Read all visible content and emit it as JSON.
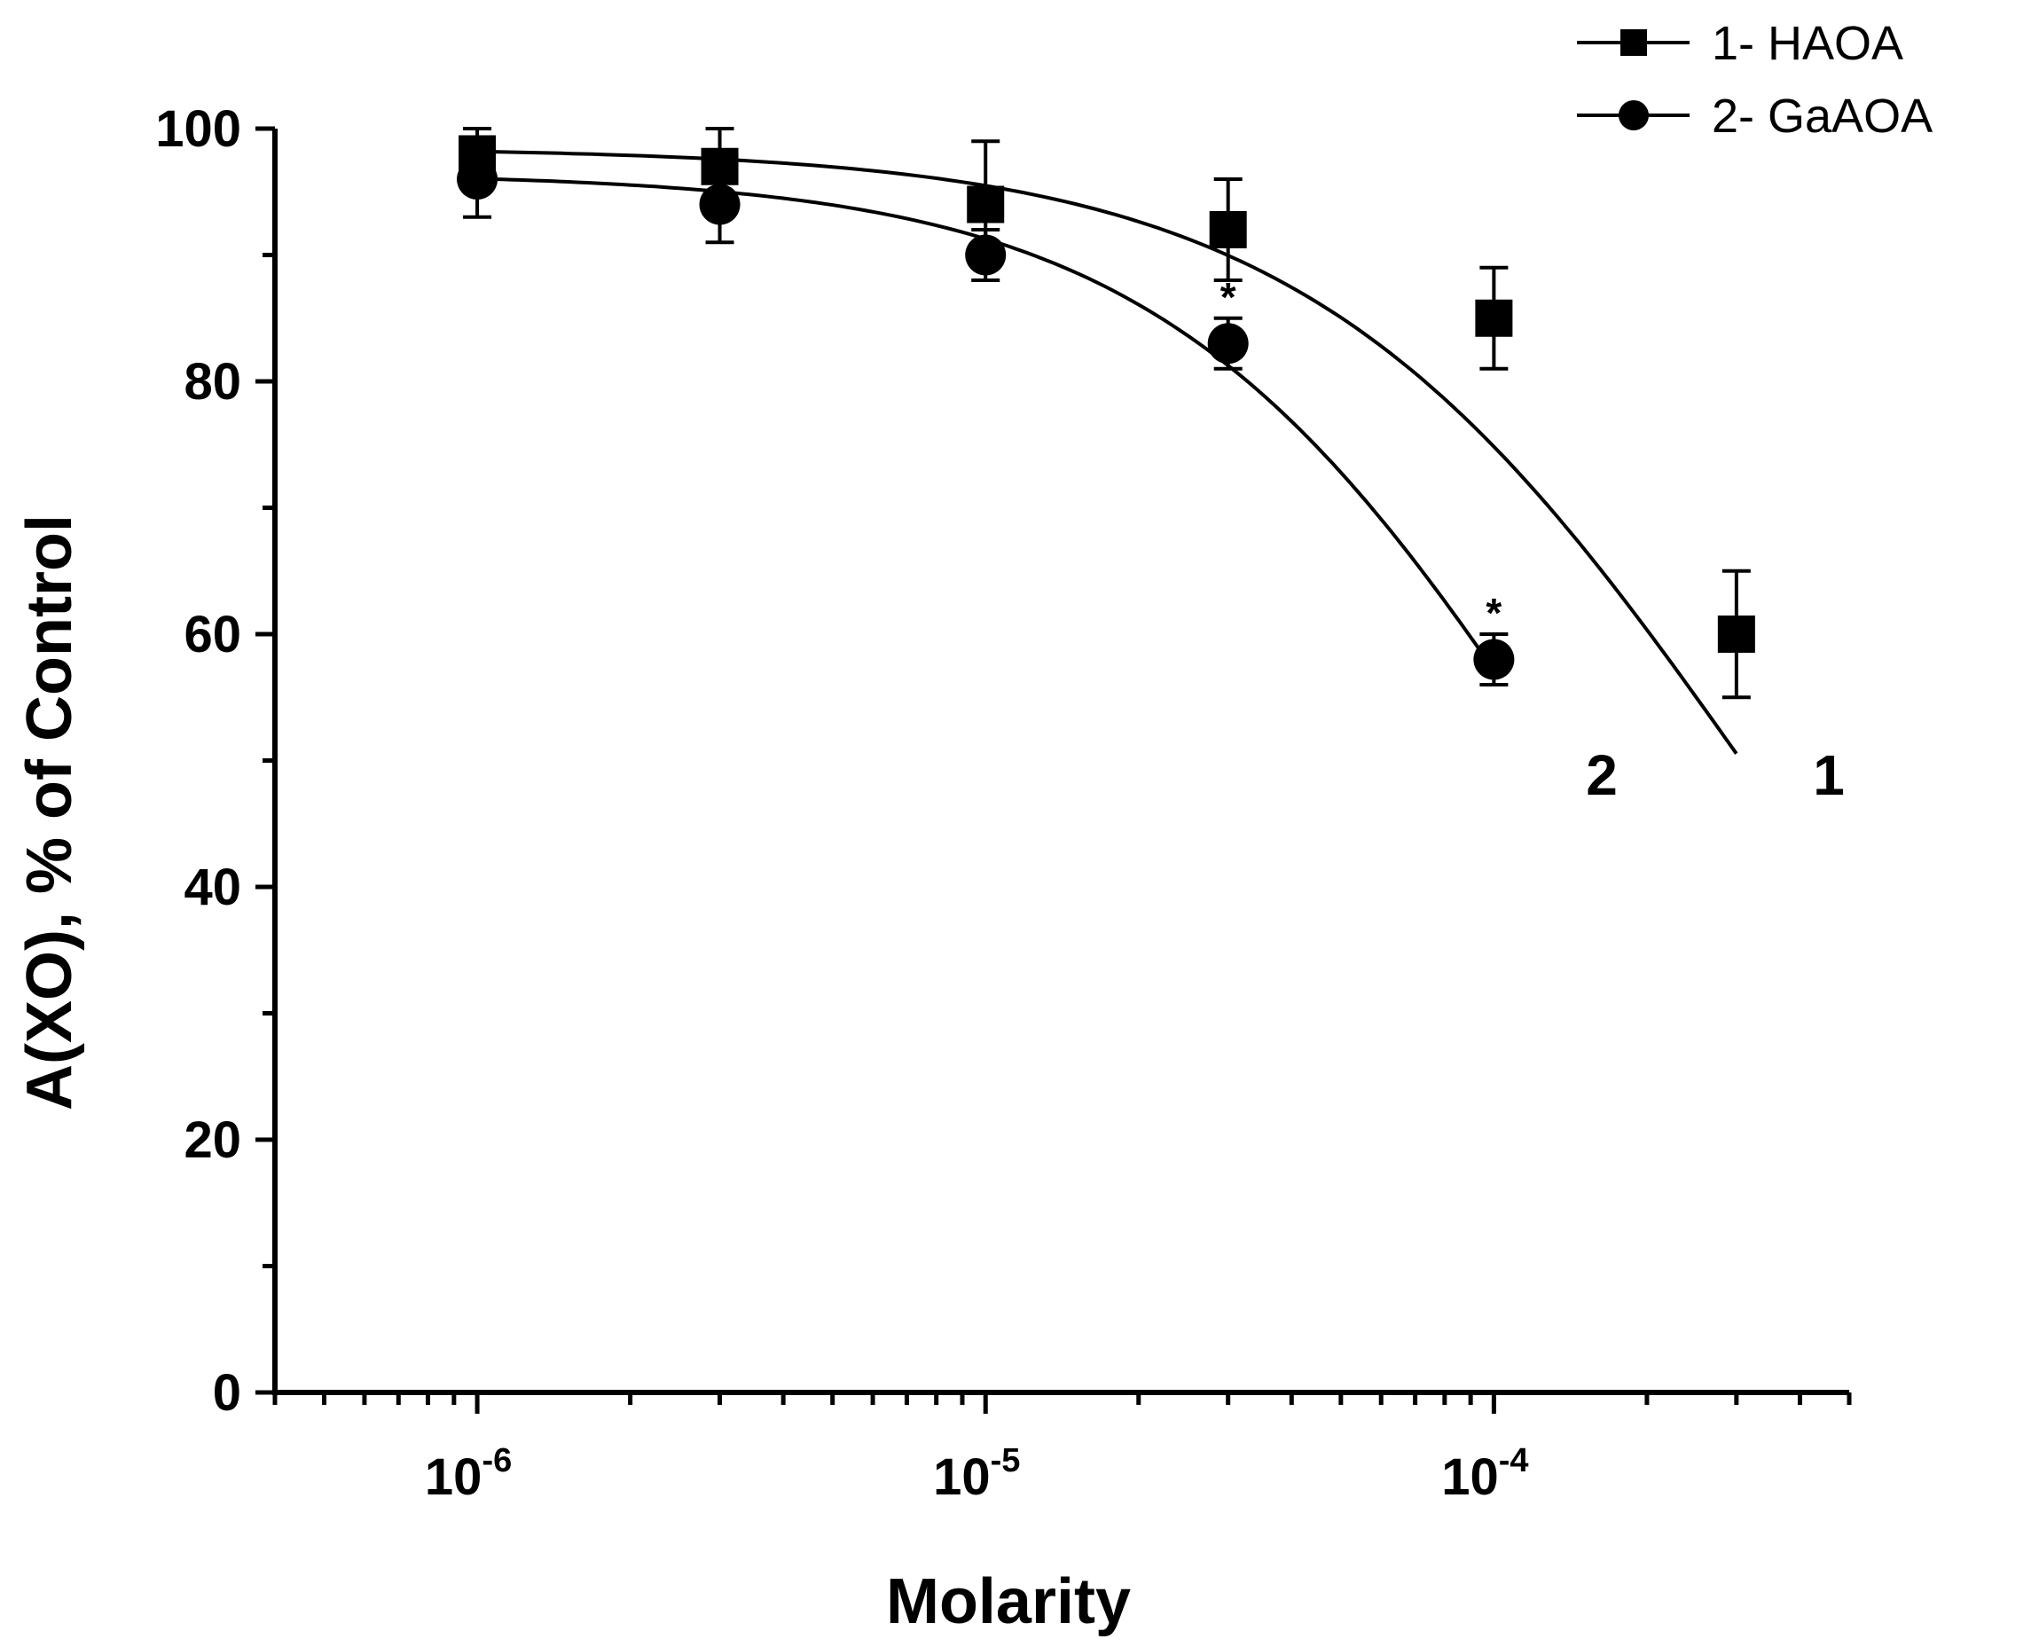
{
  "chart_data": {
    "type": "scatter",
    "title": "",
    "xlabel": "Molarity",
    "ylabel": "A(XO), % of Control",
    "xscale": "log",
    "xlim": [
      4e-07,
      0.0005
    ],
    "ylim": [
      0,
      100
    ],
    "x_ticks": [
      {
        "value": 1e-06,
        "base": "10",
        "exp": "-6"
      },
      {
        "value": 1e-05,
        "base": "10",
        "exp": "-5"
      },
      {
        "value": 0.0001,
        "base": "10",
        "exp": "-4"
      }
    ],
    "y_ticks": [
      0,
      20,
      40,
      60,
      80,
      100
    ],
    "series": [
      {
        "name": "1-  HAOA",
        "curve_label": "1",
        "marker": "square",
        "x": [
          1e-06,
          3e-06,
          1e-05,
          3e-05,
          0.0001,
          0.0003
        ],
        "y": [
          98,
          97,
          94,
          92,
          85,
          60
        ],
        "err": [
          2,
          3,
          5,
          4,
          4,
          5
        ],
        "significant": [
          false,
          false,
          false,
          false,
          false,
          false
        ],
        "fit": {
          "top": 98.5,
          "bottom": 0,
          "log_ic50": -3.5,
          "hill": 1.0
        }
      },
      {
        "name": "2- GaAOA",
        "curve_label": "2",
        "marker": "circle",
        "x": [
          1e-06,
          3e-06,
          1e-05,
          3e-05,
          0.0001
        ],
        "y": [
          96,
          94,
          90,
          83,
          58
        ],
        "err": [
          3,
          3,
          2,
          2,
          2
        ],
        "significant": [
          false,
          false,
          false,
          true,
          true
        ],
        "fit": {
          "top": 96.5,
          "bottom": 0,
          "log_ic50": -3.85,
          "hill": 1.08
        }
      }
    ],
    "significance_marker": "*",
    "legend_position": "top-right"
  }
}
